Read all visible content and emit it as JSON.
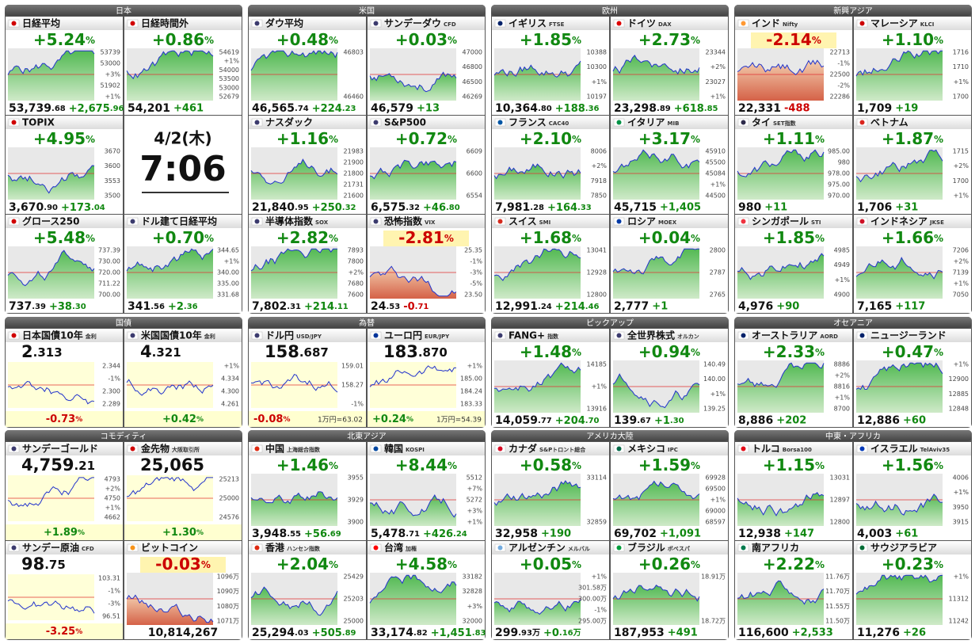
{
  "groups": [
    {
      "title": "日本",
      "tiles": [
        {
          "name": "日経平均",
          "flag": "#d00000",
          "change": "+5.24%",
          "price": "53,739.68",
          "delta": "+2,675.96",
          "axis": [
            "53739",
            "53000",
            "+3%",
            "51902",
            "+1%"
          ]
        },
        {
          "name": "日経時間外",
          "flag": "#d00000",
          "change": "+0.86%",
          "price": "54,201",
          "delta": "+461",
          "axis": [
            "54619",
            "+1%",
            "54000",
            "53500",
            "53000",
            "52679"
          ]
        },
        {
          "name": "TOPIX",
          "flag": "#d00000",
          "change": "+4.95%",
          "price": "3,670.90",
          "delta": "+173.04",
          "axis": [
            "3670",
            "3600",
            "3553",
            "3500"
          ]
        },
        {
          "kind": "clock",
          "date": "4/2(木)",
          "time": "7:06"
        },
        {
          "name": "グロース250",
          "flag": "#d00000",
          "change": "+5.48%",
          "price": "737.39",
          "delta": "+38.30",
          "axis": [
            "737.39",
            "730.00",
            "720.00",
            "711.22",
            "700.00"
          ]
        },
        {
          "name": "ドル建て日経平均",
          "flag": "#3c3b6e",
          "change": "+0.70%",
          "price": "341.56",
          "delta": "+2.36",
          "axis": [
            "344.65",
            "+1%",
            "340.00",
            "335.00",
            "331.68"
          ]
        }
      ]
    },
    {
      "title": "米国",
      "tiles": [
        {
          "name": "ダウ平均",
          "flag": "#3c3b6e",
          "change": "+0.48%",
          "price": "46,565.74",
          "delta": "+224.23",
          "axis": [
            "46803",
            "46460"
          ]
        },
        {
          "name": "サンデーダウ",
          "sub": "CFD",
          "flag": "#3c3b6e",
          "change": "+0.03%",
          "price": "46,579",
          "delta": "+13",
          "axis": [
            "47000",
            "46800",
            "46500",
            "46269"
          ]
        },
        {
          "name": "ナスダック",
          "flag": "#3c3b6e",
          "change": "+1.16%",
          "price": "21,840.95",
          "delta": "+250.32",
          "axis": [
            "21983",
            "21900",
            "21800",
            "21731",
            "21600"
          ]
        },
        {
          "name": "S&P500",
          "flag": "#3c3b6e",
          "change": "+0.72%",
          "price": "6,575.32",
          "delta": "+46.80",
          "axis": [
            "6609",
            "6600",
            "6554"
          ]
        },
        {
          "name": "半導体指数",
          "sub": "SOX",
          "flag": "#3c3b6e",
          "change": "+2.82%",
          "price": "7,802.31",
          "delta": "+214.11",
          "axis": [
            "7893",
            "7800",
            "+2%",
            "7680",
            "7600"
          ]
        },
        {
          "name": "恐怖指数",
          "sub": "VIX",
          "flag": "#3c3b6e",
          "change": "-2.81%",
          "price": "24.53",
          "delta": "-0.71",
          "axis": [
            "25.35",
            "-1%",
            "-3%",
            "-5%",
            "23.50"
          ]
        }
      ]
    },
    {
      "title": "欧州",
      "tiles": [
        {
          "name": "イギリス",
          "sub": "FTSE",
          "flag": "#012169",
          "change": "+1.85%",
          "price": "10,364.80",
          "delta": "+188.36",
          "axis": [
            "10388",
            "10300",
            "+1%",
            "10197"
          ]
        },
        {
          "name": "ドイツ",
          "sub": "DAX",
          "flag": "#dd0000",
          "change": "+2.73%",
          "price": "23,298.89",
          "delta": "+618.85",
          "axis": [
            "23344",
            "+2%",
            "23027",
            "+1%"
          ]
        },
        {
          "name": "フランス",
          "sub": "CAC40",
          "flag": "#0055a4",
          "change": "+2.10%",
          "price": "7,981.28",
          "delta": "+164.33",
          "axis": [
            "8006",
            "+2%",
            "7918",
            "7850"
          ]
        },
        {
          "name": "イタリア",
          "sub": "MIB",
          "flag": "#009246",
          "change": "+3.17%",
          "price": "45,715",
          "delta": "+1,405",
          "axis": [
            "45910",
            "45500",
            "45084",
            "+1%",
            "44500"
          ]
        },
        {
          "name": "スイス",
          "sub": "SMI",
          "flag": "#d52b1e",
          "change": "+1.68%",
          "price": "12,991.24",
          "delta": "+214.46",
          "axis": [
            "13041",
            "12928",
            "12800"
          ]
        },
        {
          "name": "ロシア",
          "sub": "MOEX",
          "flag": "#0039a6",
          "change": "+0.04%",
          "price": "2,777",
          "delta": "+1",
          "axis": [
            "2800",
            "2787",
            "2765"
          ]
        }
      ]
    },
    {
      "title": "新興アジア",
      "tiles": [
        {
          "name": "インド",
          "sub": "Nifty",
          "flag": "#ff9933",
          "change": "-2.14%",
          "price": "22,331",
          "delta": "-488",
          "axis": [
            "22713",
            "-1%",
            "22500",
            "-2%",
            "22286"
          ]
        },
        {
          "name": "マレーシア",
          "sub": "KLCI",
          "flag": "#cc0001",
          "change": "+1.10%",
          "price": "1,709",
          "delta": "+19",
          "axis": [
            "1716",
            "1710",
            "+1%",
            "1700"
          ]
        },
        {
          "name": "タイ",
          "sub": "SET指数",
          "flag": "#2d2a4a",
          "change": "+1.11%",
          "price": "980",
          "delta": "+11",
          "axis": [
            "985.00",
            "980",
            "978.00",
            "975.00",
            "970.00"
          ]
        },
        {
          "name": "ベトナム",
          "flag": "#da251d",
          "change": "+1.87%",
          "price": "1,706",
          "delta": "+31",
          "axis": [
            "1715",
            "+2%",
            "1700",
            "+1%"
          ]
        },
        {
          "name": "シンガポール",
          "sub": "STI",
          "flag": "#ef3340",
          "change": "+1.85%",
          "price": "4,976",
          "delta": "+90",
          "axis": [
            "4985",
            "4949",
            "+1%",
            "4900"
          ]
        },
        {
          "name": "インドネシア",
          "sub": "JKSE",
          "flag": "#ce1126",
          "change": "+1.66%",
          "price": "7,165",
          "delta": "+117",
          "axis": [
            "7206",
            "+2%",
            "7139",
            "+1%",
            "7050"
          ]
        }
      ]
    },
    {
      "title": "国債",
      "tiles": [
        {
          "kind": "quote",
          "name": "日本国債10年",
          "sub": "金利",
          "flag": "#d00000",
          "value": "2.313",
          "change": "-0.73%",
          "axis": [
            "2.344",
            "-1%",
            "2.300",
            "2.289"
          ]
        },
        {
          "kind": "quote",
          "name": "米国国債10年",
          "sub": "金利",
          "flag": "#3c3b6e",
          "value": "4.321",
          "change": "+0.42%",
          "axis": [
            "+1%",
            "4.334",
            "4.300",
            "4.261"
          ]
        }
      ]
    },
    {
      "title": "為替",
      "tiles": [
        {
          "kind": "quote",
          "name": "ドル円",
          "sub": "USD/JPY",
          "flag": "#3c3b6e",
          "value": "158.687",
          "change": "-0.08%",
          "note": "1万円=63.02",
          "axis": [
            "159.01",
            "158.27",
            "-1%"
          ]
        },
        {
          "kind": "quote",
          "name": "ユーロ円",
          "sub": "EUR/JPY",
          "flag": "#003399",
          "value": "183.870",
          "change": "+0.24%",
          "note": "1万円=54.39",
          "axis": [
            "+1%",
            "185.00",
            "184.24",
            "183.33"
          ]
        }
      ]
    },
    {
      "title": "ピックアップ",
      "tiles": [
        {
          "name": "FANG+",
          "sub": "指数",
          "flag": "#3c3b6e",
          "change": "+1.48%",
          "price": "14,059.77",
          "delta": "+204.70",
          "axis": [
            "14185",
            "+1%",
            "13916"
          ]
        },
        {
          "name": "全世界株式",
          "sub": "オルカン",
          "flag": "#3c3b6e",
          "change": "+0.94%",
          "price": "139.67",
          "delta": "+1.30",
          "axis": [
            "140.49",
            "140.00",
            "+1%",
            "139.25"
          ]
        }
      ]
    },
    {
      "title": "オセアニア",
      "tiles": [
        {
          "name": "オーストラリア",
          "sub": "AORD",
          "flag": "#012169",
          "change": "+2.33%",
          "price": "8,886",
          "delta": "+202",
          "axis": [
            "8886",
            "+2%",
            "8816",
            "+1%",
            "8700"
          ]
        },
        {
          "name": "ニュージーランド",
          "flag": "#012169",
          "change": "+0.47%",
          "price": "12,886",
          "delta": "+60",
          "axis": [
            "+1%",
            "12900",
            "12885",
            "12848"
          ]
        }
      ]
    },
    {
      "title": "コモディティ",
      "tiles": [
        {
          "kind": "quote",
          "name": "サンデーゴールド",
          "flag": "#3c3b6e",
          "value": "4,759.21",
          "change": "+1.89%",
          "axis": [
            "4793",
            "+2%",
            "4750",
            "+1%",
            "4662"
          ]
        },
        {
          "kind": "quote",
          "name": "金先物",
          "sub": "大阪取引所",
          "flag": "#d00000",
          "value": "25,065",
          "change": "+1.30%",
          "axis": [
            "25213",
            "25000",
            "24576"
          ]
        },
        {
          "kind": "quote",
          "name": "サンデー原油",
          "sub": "CFD",
          "flag": "#3c3b6e",
          "value": "98.75",
          "change": "-3.25%",
          "axis": [
            "103.31",
            "-1%",
            "-3%",
            "96.51"
          ]
        },
        {
          "name": "ビットコイン",
          "flag": "#f7931a",
          "change": "-0.03%",
          "price": "10,814,267",
          "axis": [
            "1096万",
            "1090万",
            "1080万",
            "1071万"
          ]
        }
      ]
    },
    {
      "title": "北東アジア",
      "tiles": [
        {
          "name": "中国",
          "sub": "上海総合指数",
          "flag": "#de2910",
          "change": "+1.46%",
          "price": "3,948.55",
          "delta": "+56.69",
          "axis": [
            "3955",
            "3929",
            "3900"
          ]
        },
        {
          "name": "韓国",
          "sub": "KOSPI",
          "flag": "#0047a0",
          "change": "+8.44%",
          "price": "5,478.71",
          "delta": "+426.24",
          "axis": [
            "5512",
            "+7%",
            "5272",
            "+3%",
            "+1%"
          ]
        },
        {
          "name": "香港",
          "sub": "ハンセン指数",
          "flag": "#de2910",
          "change": "+2.04%",
          "price": "25,294.03",
          "delta": "+505.89",
          "axis": [
            "25429",
            "25203",
            "25000"
          ]
        },
        {
          "name": "台湾",
          "sub": "加権",
          "flag": "#fe0000",
          "change": "+4.58%",
          "price": "33,174.82",
          "delta": "+1,451.83",
          "axis": [
            "33182",
            "32828",
            "+3%",
            "32000"
          ]
        }
      ]
    },
    {
      "title": "アメリカ大陸",
      "tiles": [
        {
          "name": "カナダ",
          "sub": "S&Pトロント総合",
          "flag": "#d80621",
          "change": "+0.58%",
          "price": "32,958",
          "delta": "+190",
          "axis": [
            "33114",
            "32859"
          ]
        },
        {
          "name": "メキシコ",
          "sub": "IPC",
          "flag": "#006847",
          "change": "+1.59%",
          "price": "69,702",
          "delta": "+1,091",
          "axis": [
            "69928",
            "69500",
            "+1%",
            "69000",
            "68597"
          ]
        },
        {
          "name": "アルゼンチン",
          "sub": "メルバル",
          "flag": "#74acdf",
          "change": "+0.05%",
          "price": "299.93万",
          "delta": "+0.16万",
          "axis": [
            "+1%",
            "301.58万",
            "300.00万",
            "-1%",
            "295.00万"
          ]
        },
        {
          "name": "ブラジル",
          "sub": "ボベスパ",
          "flag": "#009c3b",
          "change": "+0.26%",
          "price": "187,953",
          "delta": "+491",
          "axis": [
            "18.91万",
            "18.72万"
          ]
        }
      ]
    },
    {
      "title": "中東・アフリカ",
      "tiles": [
        {
          "name": "トルコ",
          "sub": "Borsa100",
          "flag": "#e30a17",
          "change": "+1.15%",
          "price": "12,938",
          "delta": "+147",
          "axis": [
            "13031",
            "12897",
            "12800"
          ]
        },
        {
          "name": "イスラエル",
          "sub": "TelAviv35",
          "flag": "#0038b8",
          "change": "+1.56%",
          "price": "4,003",
          "delta": "+61",
          "axis": [
            "4006",
            "+1%",
            "3950",
            "3915"
          ]
        },
        {
          "name": "南アフリカ",
          "flag": "#007a4d",
          "change": "+2.22%",
          "price": "116,600",
          "delta": "+2,533",
          "axis": [
            "11.76万",
            "11.70万",
            "11.55万",
            "11.50万"
          ]
        },
        {
          "name": "サウジアラビア",
          "flag": "#006c35",
          "change": "+0.23%",
          "price": "11,276",
          "delta": "+26",
          "axis": [
            "+1%",
            "11312",
            "11242"
          ]
        }
      ]
    }
  ]
}
